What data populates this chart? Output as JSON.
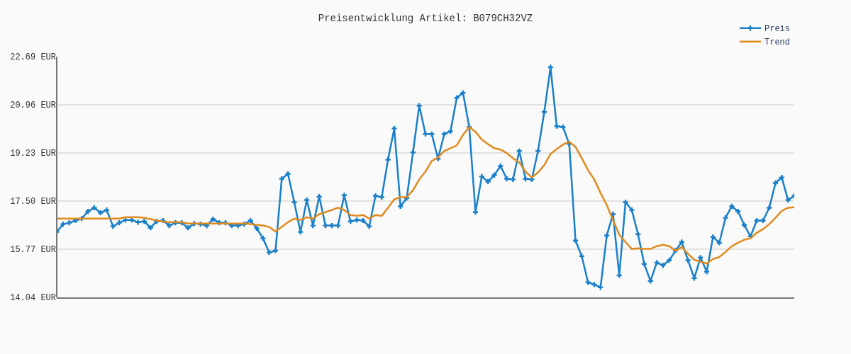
{
  "chart_data": {
    "type": "line",
    "title": "Preisentwicklung Artikel: B079CH32VZ",
    "categories": [
      null,
      null,
      null,
      null,
      null,
      null,
      null,
      null,
      null,
      null,
      null,
      null,
      null,
      null,
      null,
      null,
      null,
      null,
      null,
      null,
      null,
      null,
      null,
      null,
      null,
      null,
      null,
      null,
      null,
      null,
      null,
      null,
      null,
      null,
      null,
      null,
      null,
      null,
      null,
      null,
      null,
      null,
      null,
      null,
      null,
      null,
      null,
      null,
      null,
      null,
      null,
      null,
      null,
      null,
      null,
      null,
      null,
      null,
      null,
      null,
      null,
      null,
      null,
      null,
      null,
      null,
      null,
      null,
      null,
      null,
      null,
      null,
      null,
      null,
      null,
      null,
      null,
      null,
      null,
      null,
      null,
      null,
      null,
      null,
      null,
      null,
      null,
      null,
      null,
      null,
      null,
      null,
      null,
      null,
      null,
      null,
      null,
      null,
      null,
      null,
      null,
      null,
      null,
      null,
      null,
      null,
      null,
      null,
      null,
      null,
      null,
      null,
      null,
      null,
      null,
      null,
      null,
      null,
      null
    ],
    "series": [
      {
        "name": "Preis",
        "color": "#1a7fc9",
        "marker": "cross",
        "values": [
          16.39,
          16.67,
          16.72,
          16.8,
          16.87,
          17.13,
          17.26,
          17.08,
          17.18,
          16.59,
          16.72,
          16.82,
          16.82,
          16.74,
          16.77,
          16.54,
          16.77,
          16.8,
          16.62,
          16.72,
          16.72,
          16.54,
          16.69,
          16.67,
          16.62,
          16.85,
          16.72,
          16.72,
          16.62,
          16.62,
          16.67,
          16.8,
          16.52,
          16.16,
          15.65,
          15.72,
          18.3,
          18.48,
          17.46,
          16.39,
          17.54,
          16.62,
          17.66,
          16.62,
          16.62,
          16.62,
          17.71,
          16.77,
          16.82,
          16.8,
          16.59,
          17.69,
          17.64,
          18.99,
          20.11,
          17.31,
          17.61,
          19.25,
          20.93,
          19.91,
          19.91,
          19.02,
          19.91,
          20.01,
          21.21,
          21.39,
          20.16,
          17.1,
          18.38,
          18.2,
          18.43,
          18.76,
          18.3,
          18.28,
          19.3,
          18.3,
          18.28,
          19.3,
          20.7,
          22.31,
          20.19,
          20.16,
          19.55,
          16.08,
          15.52,
          14.58,
          14.5,
          14.4,
          16.26,
          17.03,
          14.83,
          17.46,
          17.18,
          16.31,
          15.24,
          14.63,
          15.29,
          15.19,
          15.37,
          15.72,
          16.03,
          15.37,
          14.73,
          15.47,
          14.96,
          16.21,
          16.0,
          16.9,
          17.31,
          17.13,
          16.64,
          16.23,
          16.8,
          16.8,
          17.26,
          18.15,
          18.35,
          17.54,
          17.69
        ]
      },
      {
        "name": "Trend",
        "color": "#e08a1e",
        "marker": "none",
        "values": [
          16.87,
          16.87,
          16.87,
          16.87,
          16.87,
          16.87,
          16.87,
          16.87,
          16.87,
          16.87,
          16.87,
          16.92,
          16.92,
          16.92,
          16.9,
          16.85,
          16.8,
          16.77,
          16.74,
          16.74,
          16.74,
          16.69,
          16.69,
          16.69,
          16.69,
          16.69,
          16.69,
          16.69,
          16.69,
          16.69,
          16.69,
          16.67,
          16.65,
          16.62,
          16.57,
          16.41,
          16.57,
          16.74,
          16.87,
          16.82,
          16.92,
          16.87,
          17.03,
          17.1,
          17.18,
          17.26,
          17.18,
          17.0,
          16.97,
          17.0,
          16.87,
          17.0,
          16.97,
          17.26,
          17.56,
          17.64,
          17.64,
          17.89,
          18.28,
          18.56,
          18.94,
          19.07,
          19.3,
          19.4,
          19.5,
          19.88,
          20.16,
          19.99,
          19.71,
          19.55,
          19.4,
          19.35,
          19.22,
          19.04,
          18.89,
          18.56,
          18.35,
          18.53,
          18.79,
          19.19,
          19.37,
          19.53,
          19.63,
          19.45,
          19.04,
          18.61,
          18.28,
          17.79,
          17.36,
          16.82,
          16.29,
          16.03,
          15.78,
          15.8,
          15.78,
          15.78,
          15.88,
          15.93,
          15.88,
          15.72,
          15.85,
          15.6,
          15.39,
          15.32,
          15.26,
          15.42,
          15.49,
          15.67,
          15.88,
          16.0,
          16.11,
          16.16,
          16.36,
          16.49,
          16.67,
          16.9,
          17.15,
          17.26,
          17.28
        ]
      }
    ],
    "ylim": [
      14.04,
      22.69
    ],
    "yticks": [
      {
        "value": 14.04,
        "label": "14.04 EUR"
      },
      {
        "value": 15.77,
        "label": "15.77 EUR"
      },
      {
        "value": 17.5,
        "label": "17.50 EUR"
      },
      {
        "value": 19.23,
        "label": "19.23 EUR"
      },
      {
        "value": 20.96,
        "label": "20.96 EUR"
      },
      {
        "value": 22.69,
        "label": "22.69 EUR"
      }
    ],
    "grid": "y",
    "legend": "top right",
    "line_style": "solid"
  }
}
